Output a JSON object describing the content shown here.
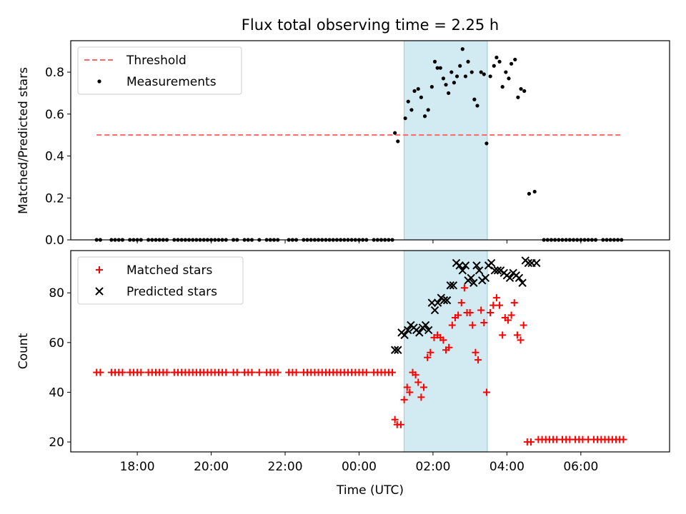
{
  "figure": {
    "title": "Flux total observing time = 2.25 h",
    "xlabel": "Time (UTC)"
  },
  "chart_data": [
    {
      "type": "scatter",
      "ylabel": "Matched/Predicted stars",
      "xlim": [
        16.2,
        8.4
      ],
      "ylim": [
        0,
        0.95
      ],
      "yticks": [
        0.0,
        0.2,
        0.4,
        0.6,
        0.8
      ],
      "ytick_labels": [
        "0.0",
        "0.2",
        "0.4",
        "0.6",
        "0.8"
      ],
      "xticks": [
        18,
        20,
        22,
        24,
        26,
        28,
        30
      ],
      "legend": {
        "placement": "top-left",
        "entries": [
          "Threshold",
          "Measurements"
        ]
      },
      "span": {
        "x": [
          25.22,
          27.47
        ],
        "color": "#add8e6"
      },
      "threshold": {
        "name": "Threshold",
        "x": [
          16.9,
          31.1
        ],
        "y": 0.5,
        "color": "#ff6666",
        "style": "dashed"
      },
      "series": [
        {
          "name": "Measurements",
          "marker": "dot",
          "color": "#000000",
          "zero_x": [
            16.9,
            17.0,
            17.3,
            17.4,
            17.5,
            17.6,
            17.8,
            17.9,
            18.0,
            18.1,
            18.3,
            18.4,
            18.5,
            18.6,
            18.7,
            18.8,
            19.0,
            19.1,
            19.2,
            19.3,
            19.4,
            19.5,
            19.6,
            19.7,
            19.8,
            19.9,
            20.0,
            20.1,
            20.2,
            20.3,
            20.4,
            20.6,
            20.7,
            20.9,
            21.0,
            21.1,
            21.3,
            21.5,
            21.6,
            21.7,
            21.8,
            22.1,
            22.2,
            22.3,
            22.5,
            22.6,
            22.7,
            22.8,
            22.9,
            23.0,
            23.1,
            23.2,
            23.3,
            23.4,
            23.5,
            23.6,
            23.7,
            23.8,
            23.9,
            24.0,
            24.1,
            24.2,
            24.4,
            24.5,
            24.6,
            24.7,
            24.8,
            24.9,
            29.0,
            29.1,
            29.2,
            29.3,
            29.4,
            29.5,
            29.6,
            29.7,
            29.8,
            29.9,
            30.0,
            30.1,
            30.2,
            30.3,
            30.4,
            30.6,
            30.7,
            30.8,
            30.9,
            31.0,
            31.1
          ],
          "points": [
            [
              24.97,
              0.51
            ],
            [
              25.05,
              0.47
            ],
            [
              25.25,
              0.58
            ],
            [
              25.33,
              0.66
            ],
            [
              25.42,
              0.62
            ],
            [
              25.5,
              0.71
            ],
            [
              25.6,
              0.72
            ],
            [
              25.68,
              0.68
            ],
            [
              25.78,
              0.59
            ],
            [
              25.87,
              0.62
            ],
            [
              25.97,
              0.73
            ],
            [
              26.05,
              0.85
            ],
            [
              26.12,
              0.82
            ],
            [
              26.2,
              0.82
            ],
            [
              26.28,
              0.77
            ],
            [
              26.35,
              0.74
            ],
            [
              26.42,
              0.7
            ],
            [
              26.5,
              0.8
            ],
            [
              26.57,
              0.75
            ],
            [
              26.65,
              0.78
            ],
            [
              26.73,
              0.83
            ],
            [
              26.8,
              0.91
            ],
            [
              26.88,
              0.78
            ],
            [
              26.95,
              0.85
            ],
            [
              27.05,
              0.8
            ],
            [
              27.12,
              0.67
            ],
            [
              27.2,
              0.64
            ],
            [
              27.3,
              0.8
            ],
            [
              27.38,
              0.79
            ],
            [
              27.45,
              0.46
            ],
            [
              27.55,
              0.78
            ],
            [
              27.65,
              0.83
            ],
            [
              27.72,
              0.87
            ],
            [
              27.8,
              0.85
            ],
            [
              27.88,
              0.73
            ],
            [
              27.97,
              0.8
            ],
            [
              28.05,
              0.77
            ],
            [
              28.12,
              0.84
            ],
            [
              28.22,
              0.86
            ],
            [
              28.3,
              0.68
            ],
            [
              28.38,
              0.72
            ],
            [
              28.47,
              0.71
            ],
            [
              28.6,
              0.22
            ],
            [
              28.75,
              0.23
            ]
          ]
        }
      ]
    },
    {
      "type": "scatter",
      "ylabel": "Count",
      "xlim": [
        16.2,
        8.4
      ],
      "ylim": [
        16,
        97
      ],
      "yticks": [
        20,
        40,
        60,
        80
      ],
      "ytick_labels": [
        "20",
        "40",
        "60",
        "80"
      ],
      "xticks": [
        18,
        20,
        22,
        24,
        26,
        28,
        30
      ],
      "xtick_labels": [
        "18:00",
        "20:00",
        "22:00",
        "00:00",
        "02:00",
        "04:00",
        "06:00"
      ],
      "legend": {
        "placement": "top-left",
        "entries": [
          "Matched stars",
          "Predicted stars"
        ]
      },
      "span": {
        "x": [
          25.22,
          27.47
        ],
        "color": "#add8e6"
      },
      "series": [
        {
          "name": "Matched stars",
          "marker": "plus",
          "color": "#ff0000",
          "flat_segments": [
            {
              "y": 48,
              "x": [
                16.9,
                17.0,
                17.3,
                17.4,
                17.5,
                17.6,
                17.8,
                17.9,
                18.0,
                18.1,
                18.3,
                18.4,
                18.5,
                18.6,
                18.7,
                18.8,
                19.0,
                19.1,
                19.2,
                19.3,
                19.4,
                19.5,
                19.6,
                19.7,
                19.8,
                19.9,
                20.0,
                20.1,
                20.2,
                20.3,
                20.4,
                20.6,
                20.7,
                20.9,
                21.0,
                21.1,
                21.3,
                21.5,
                21.6,
                21.7,
                21.8,
                22.1,
                22.2,
                22.3,
                22.5,
                22.6,
                22.7,
                22.8,
                22.9,
                23.0,
                23.1,
                23.2,
                23.3,
                23.4,
                23.5,
                23.6,
                23.7,
                23.8,
                23.9,
                24.0,
                24.1,
                24.2,
                24.4,
                24.5,
                24.6,
                24.7,
                24.8,
                24.9
              ]
            },
            {
              "y": 21,
              "x": [
                28.85,
                28.95,
                29.05,
                29.15,
                29.25,
                29.35,
                29.5,
                29.6,
                29.7,
                29.85,
                29.95,
                30.05,
                30.2,
                30.35,
                30.45,
                30.55,
                30.65,
                30.75,
                30.85,
                30.95,
                31.05,
                31.15
              ]
            }
          ],
          "points": [
            [
              24.97,
              29
            ],
            [
              25.03,
              27
            ],
            [
              25.13,
              27
            ],
            [
              25.22,
              37
            ],
            [
              25.3,
              42
            ],
            [
              25.37,
              40
            ],
            [
              25.45,
              48
            ],
            [
              25.53,
              47
            ],
            [
              25.6,
              44
            ],
            [
              25.68,
              38
            ],
            [
              25.75,
              42
            ],
            [
              25.85,
              54
            ],
            [
              25.93,
              56
            ],
            [
              26.03,
              62
            ],
            [
              26.12,
              63
            ],
            [
              26.2,
              62
            ],
            [
              26.28,
              61
            ],
            [
              26.35,
              57
            ],
            [
              26.43,
              58
            ],
            [
              26.52,
              67
            ],
            [
              26.6,
              70
            ],
            [
              26.68,
              71
            ],
            [
              26.77,
              76
            ],
            [
              26.85,
              82
            ],
            [
              26.92,
              72
            ],
            [
              27.0,
              72
            ],
            [
              27.07,
              67
            ],
            [
              27.15,
              56
            ],
            [
              27.22,
              53
            ],
            [
              27.3,
              73
            ],
            [
              27.38,
              68
            ],
            [
              27.45,
              40
            ],
            [
              27.55,
              72
            ],
            [
              27.63,
              75
            ],
            [
              27.72,
              78
            ],
            [
              27.8,
              75
            ],
            [
              27.88,
              63
            ],
            [
              27.95,
              70
            ],
            [
              28.03,
              69
            ],
            [
              28.12,
              71
            ],
            [
              28.2,
              76
            ],
            [
              28.28,
              63
            ],
            [
              28.37,
              61
            ],
            [
              28.45,
              67
            ],
            [
              28.55,
              20
            ],
            [
              28.65,
              20
            ]
          ]
        },
        {
          "name": "Predicted stars",
          "marker": "x",
          "color": "#000000",
          "points": [
            [
              24.97,
              57
            ],
            [
              25.05,
              57
            ],
            [
              25.15,
              64
            ],
            [
              25.23,
              63
            ],
            [
              25.32,
              65
            ],
            [
              25.4,
              67
            ],
            [
              25.48,
              66
            ],
            [
              25.55,
              65
            ],
            [
              25.63,
              64
            ],
            [
              25.72,
              66
            ],
            [
              25.8,
              67
            ],
            [
              25.88,
              65
            ],
            [
              25.97,
              76
            ],
            [
              26.05,
              73
            ],
            [
              26.13,
              76
            ],
            [
              26.22,
              78
            ],
            [
              26.3,
              77
            ],
            [
              26.38,
              77
            ],
            [
              26.47,
              83
            ],
            [
              26.55,
              83
            ],
            [
              26.63,
              92
            ],
            [
              26.72,
              91
            ],
            [
              26.8,
              89
            ],
            [
              26.88,
              91
            ],
            [
              26.95,
              85
            ],
            [
              27.03,
              86
            ],
            [
              27.1,
              84
            ],
            [
              27.18,
              91
            ],
            [
              27.25,
              89
            ],
            [
              27.33,
              85
            ],
            [
              27.42,
              86
            ],
            [
              27.5,
              91
            ],
            [
              27.58,
              92
            ],
            [
              27.67,
              89
            ],
            [
              27.75,
              89
            ],
            [
              27.83,
              89
            ],
            [
              27.92,
              88
            ],
            [
              28.0,
              87
            ],
            [
              28.08,
              86
            ],
            [
              28.17,
              88
            ],
            [
              28.25,
              87
            ],
            [
              28.33,
              86
            ],
            [
              28.42,
              84
            ],
            [
              28.5,
              93
            ],
            [
              28.58,
              92
            ],
            [
              28.67,
              92
            ],
            [
              28.8,
              92
            ]
          ]
        }
      ]
    }
  ]
}
